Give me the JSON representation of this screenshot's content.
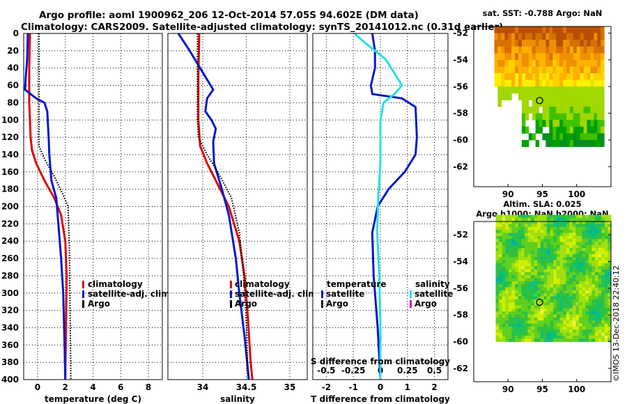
{
  "title_line1": "Argo profile: aoml 1900962_206 12-Oct-2014 57.05S 94.602E (DM data)",
  "title_line2": "Climatology: CARS2009. Satellite-adjusted climatology: synTS_20141012.nc (0.31d earlier)",
  "credit": "©IMOS 13-Dec-2018 22:40:12",
  "colors": {
    "climatology": "#e00000",
    "satellite": "#0018cc",
    "argo": "#000000",
    "sat_salinity": "#22e0e8",
    "argo_salinity": "#cc00cc"
  },
  "chart_data": [
    {
      "type": "line",
      "title": "",
      "xlabel": "temperature (deg C)",
      "ylabel": "",
      "xlim": [
        -1,
        9
      ],
      "ylim": [
        400,
        0
      ],
      "xticks": [
        0,
        2,
        4,
        6,
        8
      ],
      "yticks": [
        0,
        20,
        40,
        60,
        80,
        100,
        120,
        140,
        160,
        180,
        200,
        220,
        240,
        260,
        280,
        300,
        320,
        340,
        360,
        380,
        400
      ],
      "legend": [
        "climatology",
        "satellite-adj. clim.",
        "Argo"
      ],
      "series": [
        {
          "name": "climatology",
          "color_key": "climatology",
          "points": [
            [
              -0.55,
              0
            ],
            [
              -0.6,
              40
            ],
            [
              -0.6,
              80
            ],
            [
              -0.5,
              120
            ],
            [
              -0.4,
              135
            ],
            [
              -0.1,
              150
            ],
            [
              0.5,
              170
            ],
            [
              1.2,
              190
            ],
            [
              1.7,
              210
            ],
            [
              2.0,
              240
            ],
            [
              2.1,
              280
            ],
            [
              2.05,
              340
            ],
            [
              2.0,
              400
            ]
          ]
        },
        {
          "name": "satellite-adj. clim.",
          "color_key": "satellite",
          "points": [
            [
              -0.7,
              0
            ],
            [
              -0.75,
              30
            ],
            [
              -0.85,
              50
            ],
            [
              -0.9,
              65
            ],
            [
              -0.1,
              75
            ],
            [
              0.5,
              80
            ],
            [
              0.7,
              90
            ],
            [
              0.8,
              120
            ],
            [
              0.85,
              140
            ],
            [
              1.0,
              170
            ],
            [
              1.35,
              190
            ],
            [
              1.5,
              220
            ],
            [
              1.7,
              260
            ],
            [
              1.85,
              300
            ],
            [
              1.95,
              360
            ],
            [
              2.0,
              400
            ]
          ]
        },
        {
          "name": "Argo",
          "color_key": "argo",
          "points": [
            [
              0.1,
              0
            ],
            [
              0.1,
              60
            ],
            [
              0.1,
              130
            ],
            [
              0.5,
              145
            ],
            [
              1.2,
              165
            ],
            [
              1.8,
              185
            ],
            [
              2.2,
              200
            ],
            [
              2.3,
              250
            ],
            [
              2.35,
              320
            ],
            [
              2.4,
              400
            ]
          ]
        }
      ]
    },
    {
      "type": "line",
      "title": "",
      "xlabel": "salinity",
      "ylabel": "",
      "xlim": [
        33.6,
        35.2
      ],
      "ylim": [
        400,
        0
      ],
      "xticks": [
        34,
        34.5,
        35
      ],
      "xtick_labels": [
        "34",
        "34.5",
        "35"
      ],
      "yticks": [
        0,
        20,
        40,
        60,
        80,
        100,
        120,
        140,
        160,
        180,
        200,
        220,
        240,
        260,
        280,
        300,
        320,
        340,
        360,
        380,
        400
      ],
      "legend": [
        "climatology",
        "satellite-adj. clim.",
        "Argo"
      ],
      "series": [
        {
          "name": "climatology",
          "color_key": "climatology",
          "points": [
            [
              33.96,
              0
            ],
            [
              33.95,
              50
            ],
            [
              33.95,
              100
            ],
            [
              33.97,
              130
            ],
            [
              34.05,
              150
            ],
            [
              34.15,
              170
            ],
            [
              34.3,
              200
            ],
            [
              34.42,
              240
            ],
            [
              34.48,
              280
            ],
            [
              34.52,
              330
            ],
            [
              34.55,
              380
            ],
            [
              34.57,
              400
            ]
          ]
        },
        {
          "name": "satellite-adj. clim.",
          "color_key": "satellite",
          "points": [
            [
              33.72,
              0
            ],
            [
              33.85,
              20
            ],
            [
              34.0,
              45
            ],
            [
              34.12,
              65
            ],
            [
              34.05,
              75
            ],
            [
              34.03,
              90
            ],
            [
              34.1,
              100
            ],
            [
              34.15,
              110
            ],
            [
              34.12,
              125
            ],
            [
              34.13,
              150
            ],
            [
              34.22,
              180
            ],
            [
              34.3,
              210
            ],
            [
              34.38,
              260
            ],
            [
              34.42,
              300
            ],
            [
              34.48,
              350
            ],
            [
              34.53,
              400
            ]
          ]
        },
        {
          "name": "Argo",
          "color_key": "argo",
          "points": [
            [
              33.94,
              0
            ],
            [
              33.94,
              100
            ],
            [
              33.95,
              120
            ],
            [
              34.05,
              140
            ],
            [
              34.2,
              165
            ],
            [
              34.33,
              190
            ],
            [
              34.42,
              230
            ],
            [
              34.47,
              280
            ],
            [
              34.5,
              330
            ],
            [
              34.52,
              400
            ]
          ]
        }
      ]
    },
    {
      "type": "line",
      "title": "",
      "xlabel": "T difference from climatology",
      "x2label": "S difference from climatology",
      "ylabel": "",
      "xlim": [
        -2.5,
        2.5
      ],
      "ylim": [
        400,
        0
      ],
      "xticks": [
        -2,
        -1,
        0,
        1,
        2
      ],
      "x2lim": [
        -0.625,
        0.625
      ],
      "x2ticks": [
        -0.5,
        -0.25,
        0,
        0.25,
        0.5
      ],
      "x2tick_labels": [
        "-0.5",
        "-0.25",
        "0",
        "0.25",
        "0.5"
      ],
      "yticks": [
        0,
        20,
        40,
        60,
        80,
        100,
        120,
        140,
        160,
        180,
        200,
        220,
        240,
        260,
        280,
        300,
        320,
        340,
        360,
        380,
        400
      ],
      "legend_groups": [
        {
          "title": "temperature",
          "items": [
            "satellite",
            "Argo"
          ]
        },
        {
          "title": "salinity",
          "items": [
            "satellite",
            "Argo"
          ]
        }
      ],
      "series": [
        {
          "name": "temperature satellite",
          "color_key": "satellite",
          "points": [
            [
              -0.3,
              0
            ],
            [
              -0.2,
              20
            ],
            [
              -0.2,
              40
            ],
            [
              -0.35,
              60
            ],
            [
              -0.3,
              70
            ],
            [
              0.8,
              75
            ],
            [
              1.3,
              85
            ],
            [
              1.35,
              120
            ],
            [
              1.3,
              140
            ],
            [
              0.9,
              160
            ],
            [
              0.3,
              180
            ],
            [
              -0.1,
              200
            ],
            [
              -0.3,
              230
            ],
            [
              -0.25,
              280
            ],
            [
              -0.1,
              340
            ],
            [
              0,
              400
            ]
          ]
        },
        {
          "name": "temperature Argo",
          "color_key": "argo",
          "points": []
        },
        {
          "name": "salinity satellite",
          "color_key": "sat_salinity",
          "points": [
            [
              -0.24,
              0
            ],
            [
              -0.15,
              10
            ],
            [
              0.05,
              30
            ],
            [
              0.15,
              50
            ],
            [
              0.2,
              60
            ],
            [
              0.13,
              70
            ],
            [
              0.03,
              80
            ],
            [
              0.0,
              100
            ],
            [
              0.0,
              150
            ],
            [
              -0.02,
              190
            ],
            [
              -0.03,
              230
            ],
            [
              -0.01,
              280
            ],
            [
              0.0,
              340
            ],
            [
              0.0,
              400
            ]
          ]
        },
        {
          "name": "salinity Argo",
          "color_key": "argo_salinity",
          "points": []
        }
      ]
    },
    {
      "type": "heatmap",
      "title": "sat. SST: -0.788 Argo: NaN",
      "xlabel": "",
      "ylabel": "",
      "xlim": [
        85,
        105
      ],
      "ylim": [
        -63.5,
        -51.5
      ],
      "xticks": [
        90,
        95,
        100
      ],
      "yticks": [
        -52,
        -54,
        -56,
        -58,
        -60,
        -62
      ],
      "marker": {
        "lon": 94.6,
        "lat": -57.05
      },
      "palette": [
        "#b85000",
        "#d87000",
        "#f09000",
        "#ffb000",
        "#ffd000",
        "#ffee00",
        "#d8e800",
        "#a0d800",
        "#40c000",
        "#00a000",
        "#009020"
      ],
      "grid": {
        "lon0": 85.0,
        "lat0": -51.5,
        "dlon": 0.5,
        "dlat": 0.5
      }
    },
    {
      "type": "heatmap",
      "title": "Altim. SLA: 0.025",
      "subtitle": "Argo h1000: NaN h2000: NaN",
      "xlabel": "",
      "ylabel": "",
      "xlim": [
        85,
        105
      ],
      "ylim": [
        -63,
        -51
      ],
      "xticks": [
        90,
        95,
        100
      ],
      "yticks": [
        -52,
        -54,
        -56,
        -58,
        -60,
        -62
      ],
      "marker": {
        "lon": 94.6,
        "lat": -57.05
      },
      "palette": [
        "#00b0a0",
        "#10c070",
        "#30c040",
        "#60d020",
        "#a0e010",
        "#d0f000",
        "#f0f040"
      ],
      "region": {
        "lon": [
          85,
          105
        ],
        "lat": [
          -60,
          -51
        ]
      }
    }
  ]
}
